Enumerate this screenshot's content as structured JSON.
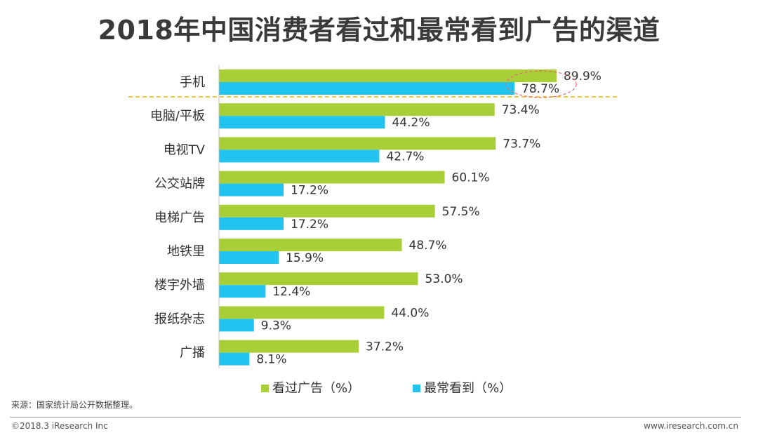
{
  "title": "2018年中国消费者看过和最常看到广告的渠道",
  "source": "来源：国家统计局公开数据整理。",
  "copyright": "©2018.3 iResearch Inc",
  "website": "www.iresearch.com.cn",
  "colors": {
    "seen": "#a9cf38",
    "most": "#22c3ee",
    "highlight": "#f0b400",
    "circle": "#e06b6b",
    "axis": "#bfbfbf",
    "text": "#333333"
  },
  "chart_data": {
    "type": "bar",
    "orientation": "horizontal",
    "categories": [
      "手机",
      "电脑/平板",
      "电视TV",
      "公交站牌",
      "电梯广告",
      "地铁里",
      "楼宇外墙",
      "报纸杂志",
      "广播"
    ],
    "series": [
      {
        "name": "看过广告（%）",
        "values": [
          89.9,
          73.4,
          73.7,
          60.1,
          57.5,
          48.7,
          53.0,
          44.0,
          37.2
        ],
        "labels": [
          "89.9%",
          "73.4%",
          "73.7%",
          "60.1%",
          "57.5%",
          "48.7%",
          "53.0%",
          "44.0%",
          "37.2%"
        ]
      },
      {
        "name": "最常看到（%）",
        "values": [
          78.7,
          44.2,
          42.7,
          17.2,
          17.2,
          15.9,
          12.4,
          9.3,
          8.1
        ],
        "labels": [
          "78.7%",
          "44.2%",
          "42.7%",
          "17.2%",
          "17.2%",
          "15.9%",
          "12.4%",
          "9.3%",
          "8.1%"
        ]
      }
    ],
    "xlim": [
      0,
      100
    ],
    "grid": false,
    "legend_position": "bottom-center",
    "highlighted_category": "手机"
  }
}
